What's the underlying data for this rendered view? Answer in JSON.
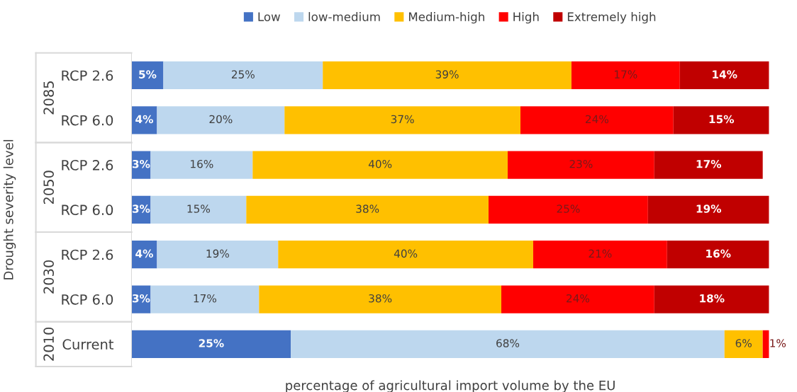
{
  "chart_data": {
    "type": "bar",
    "orientation": "horizontal",
    "stacked": true,
    "xlabel": "percentage of agricultural import volume by the EU",
    "ylabel": "Drought severity level",
    "categories": [
      "RCP 2.6",
      "RCP 6.0",
      "RCP 2.6",
      "RCP 6.0",
      "RCP 2.6",
      "RCP 6.0",
      "Current"
    ],
    "annotations": [
      "2085",
      "2050",
      "2030",
      "2010"
    ],
    "series": [
      {
        "name": "Low",
        "color": "#4472c4",
        "values": [
          5,
          4,
          3,
          3,
          4,
          3,
          25
        ],
        "value_labels": [
          "5%",
          "4%",
          "3%",
          "3%",
          "4%",
          "3%",
          "25%"
        ]
      },
      {
        "name": "low-medium",
        "color": "#bdd7ee",
        "values": [
          25,
          20,
          16,
          15,
          19,
          17,
          68
        ],
        "value_labels": [
          "25%",
          "20%",
          "16%",
          "15%",
          "19%",
          "17%",
          "68%"
        ]
      },
      {
        "name": "Medium-high",
        "color": "#ffc000",
        "values": [
          39,
          37,
          40,
          38,
          40,
          38,
          6
        ],
        "value_labels": [
          "39%",
          "37%",
          "40%",
          "38%",
          "40%",
          "38%",
          "6%"
        ]
      },
      {
        "name": "High",
        "color": "#ff0000",
        "values": [
          17,
          24,
          23,
          25,
          21,
          24,
          1
        ],
        "value_labels": [
          "17%",
          "24%",
          "23%",
          "25%",
          "21%",
          "24%",
          "1%"
        ]
      },
      {
        "name": "Extremely high",
        "color": "#c00000",
        "values": [
          14,
          15,
          17,
          19,
          16,
          18,
          null
        ],
        "value_labels": [
          "14%",
          "15%",
          "17%",
          "19%",
          "16%",
          "18%",
          null
        ]
      }
    ],
    "legend": "top",
    "grid": false,
    "tick_labels": "y"
  }
}
